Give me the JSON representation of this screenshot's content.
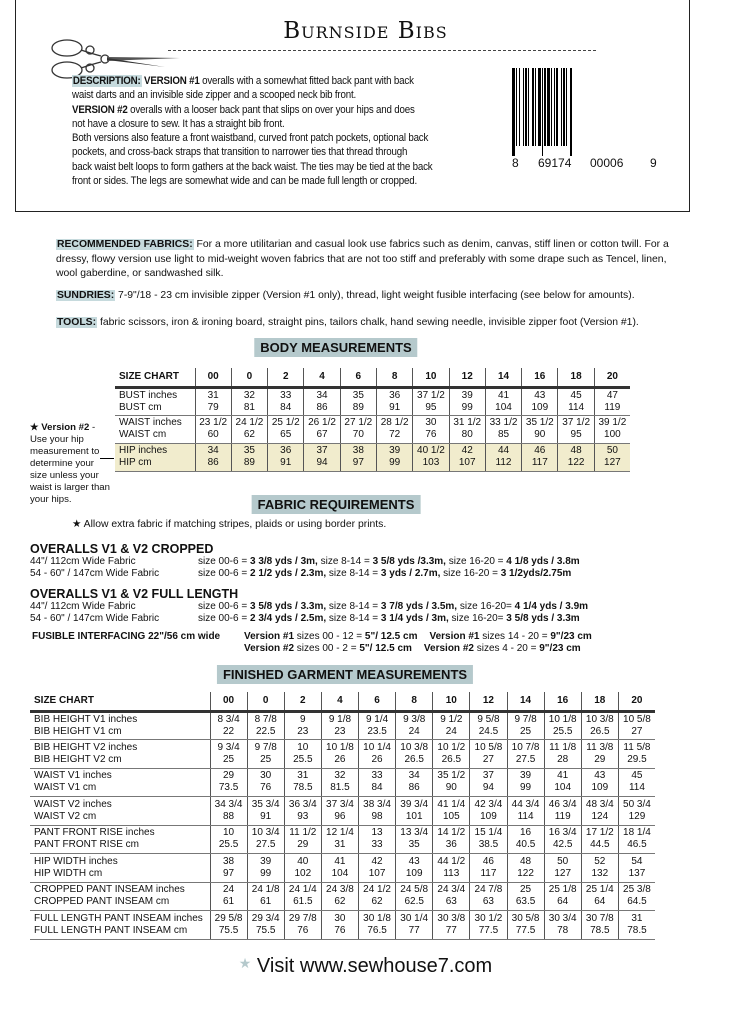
{
  "title": "Burnside Bibs",
  "description": {
    "label": "DESCRIPTION:",
    "lines": [
      {
        "b": "VERSION #1",
        "t": " overalls with a somewhat fitted back pant with back"
      },
      {
        "b": "",
        "t": " waist darts and an invisible side zipper and a scooped neck bib front."
      },
      {
        "b": "VERSION #2",
        "t": " overalls with a looser back pant that slips on over your hips and does"
      },
      {
        "b": "",
        "t": " not have a closure to sew. It has a straight bib front."
      },
      {
        "b": "",
        "t": "Both versions also feature a front waistband, curved front patch pockets, optional back"
      },
      {
        "b": "",
        "t": "pockets, and cross-back straps that transition to narrower ties that thread through"
      },
      {
        "b": "",
        "t": "back waist belt loops to form gathers at the back waist. The ties may be tied at the back"
      },
      {
        "b": "",
        "t": " front or sides. The legs are somewhat wide and can be made full length or cropped."
      }
    ]
  },
  "barcode": {
    "digits": [
      "8",
      "69174",
      "00006",
      "9"
    ]
  },
  "recommended_fabrics": {
    "label": "RECOMMENDED FABRICS:",
    "text": " For a more utilitarian and casual look use fabrics such as denim, canvas, stiff linen or cotton twill. For a dressy, flowy version use light to mid-weight woven fabrics that are not too stiff and preferably with some drape such as Tencel, linen, wool gaberdine, or sandwashed silk."
  },
  "sundries": {
    "label": "SUNDRIES:",
    "text": " 7-9\"/18 - 23 cm invisible zipper (Version #1 only), thread, light weight fusible interfacing (see below for amounts)."
  },
  "tools": {
    "label": "TOOLS:",
    "text": " fabric scissors, iron & ironing board, straight pins, tailors chalk, hand sewing needle, invisible zipper foot (Version #1)."
  },
  "body_measurements": {
    "heading": "BODY MEASUREMENTS",
    "header": [
      "SIZE CHART",
      "00",
      "0",
      "2",
      "4",
      "6",
      "8",
      "10",
      "12",
      "14",
      "16",
      "18",
      "20"
    ],
    "rows": [
      {
        "labels": [
          "BUST inches",
          "BUST cm"
        ],
        "a": [
          "31",
          "32",
          "33",
          "34",
          "35",
          "36",
          "37 1/2",
          "39",
          "41",
          "43",
          "45",
          "47"
        ],
        "b": [
          "79",
          "81",
          "84",
          "86",
          "89",
          "91",
          "95",
          "99",
          "104",
          "109",
          "114",
          "119"
        ]
      },
      {
        "labels": [
          "WAIST inches",
          "WAIST cm"
        ],
        "a": [
          "23 1/2",
          "24 1/2",
          "25 1/2",
          "26 1/2",
          "27 1/2",
          "28 1/2",
          "30",
          "31 1/2",
          "33 1/2",
          "35 1/2",
          "37 1/2",
          "39 1/2"
        ],
        "b": [
          "60",
          "62",
          "65",
          "67",
          "70",
          "72",
          "76",
          "80",
          "85",
          "90",
          "95",
          "100"
        ]
      },
      {
        "labels": [
          "HIP inches",
          "HIP cm"
        ],
        "highlight": true,
        "a": [
          "34",
          "35",
          "36",
          "37",
          "38",
          "39",
          "40 1/2",
          "42",
          "44",
          "46",
          "48",
          "50"
        ],
        "b": [
          "86",
          "89",
          "91",
          "94",
          "97",
          "99",
          "103",
          "107",
          "112",
          "117",
          "122",
          "127"
        ]
      }
    ],
    "note_title": "Version #2",
    "note_text": " - Use your hip measurement to determine your size unless your waist is larger than your hips.",
    "highlight_color": "#f1eccd"
  },
  "fabric_requirements": {
    "heading": "FABRIC REQUIREMENTS",
    "note": "Allow extra fabric if matching stripes, plaids or using border prints.",
    "groups": [
      {
        "title": "OVERALLS V1 & V2 CROPPED",
        "lines": [
          {
            "width": "44\"/ 112cm Wide Fabric",
            "parts": [
              [
                "size 00-6 = ",
                "3 3/8  yds / 3m,"
              ],
              [
                "  size 8-14 = ",
                "3 5/8 yds /3.3m,"
              ],
              [
                "  size 16-20 = ",
                "4 1/8 yds / 3.8m"
              ]
            ]
          },
          {
            "width": "54 - 60\" / 147cm  Wide Fabric",
            "parts": [
              [
                "size 00-6 = ",
                "2 1/2  yds / 2.3m,"
              ],
              [
                "  size 8-14 = ",
                "3 yds / 2.7m,"
              ],
              [
                " size 16-20 = ",
                "3 1/2yds/2.75m"
              ]
            ]
          }
        ]
      },
      {
        "title": "OVERALLS V1 & V2 FULL LENGTH",
        "lines": [
          {
            "width": "44\"/ 112cm Wide Fabric",
            "parts": [
              [
                "size  00-6 = ",
                "3 5/8 yds / 3.3m,"
              ],
              [
                " size  8-14 = ",
                "3 7/8 yds / 3.5m,"
              ],
              [
                " size  16-20= ",
                "4 1/4 yds / 3.9m"
              ]
            ]
          },
          {
            "width": "54 - 60\" / 147cm  Wide Fabric",
            "parts": [
              [
                "size  00-6 = ",
                "2 3/4 yds / 2.5m,"
              ],
              [
                " size  8-14 = ",
                "3 1/4 yds / 3m,"
              ],
              [
                " size  16-20= ",
                "3 5/8 yds / 3.3m"
              ]
            ]
          }
        ]
      }
    ],
    "interfacing": {
      "title": "FUSIBLE INTERFACING 22\"/56 cm wide",
      "lines": [
        [
          [
            "Version #1",
            " sizes 00 - 12 = ",
            "5\"/ 12.5 cm"
          ],
          [
            "Version #1",
            " sizes 14 - 20 = ",
            "9\"/23 cm"
          ]
        ],
        [
          [
            "Version #2",
            " sizes 00 - 2 =  ",
            "5\"/ 12.5 cm"
          ],
          [
            "Version #2",
            " sizes  4 - 20 = ",
            "9\"/23 cm"
          ]
        ]
      ]
    }
  },
  "finished_measurements": {
    "heading": "FINISHED GARMENT MEASUREMENTS",
    "header": [
      "SIZE CHART",
      "00",
      "0",
      "2",
      "4",
      "6",
      "8",
      "10",
      "12",
      "14",
      "16",
      "18",
      "20"
    ],
    "rows": [
      {
        "labels": [
          "BIB HEIGHT V1 inches",
          "BIB HEIGHT V1 cm"
        ],
        "a": [
          "8 3/4",
          "8 7/8",
          "9",
          "9 1/8",
          "9 1/4",
          "9 3/8",
          "9 1/2",
          "9 5/8",
          "9 7/8",
          "10 1/8",
          "10 3/8",
          "10 5/8"
        ],
        "b": [
          "22",
          "22.5",
          "23",
          "23",
          "23.5",
          "24",
          "24",
          "24.5",
          "25",
          "25.5",
          "26.5",
          "27"
        ]
      },
      {
        "labels": [
          "BIB HEIGHT V2 inches",
          "BIB HEIGHT V2 cm"
        ],
        "a": [
          "9 3/4",
          "9 7/8",
          "10",
          "10 1/8",
          "10 1/4",
          "10 3/8",
          "10 1/2",
          "10 5/8",
          "10 7/8",
          "11 1/8",
          "11 3/8",
          "11 5/8"
        ],
        "b": [
          "25",
          "25",
          "25.5",
          "26",
          "26",
          "26.5",
          "26.5",
          "27",
          "27.5",
          "28",
          "29",
          "29.5"
        ]
      },
      {
        "labels": [
          "WAIST V1  inches",
          "WAIST V1  cm"
        ],
        "a": [
          "29",
          "30",
          "31",
          "32",
          "33",
          "34",
          "35 1/2",
          "37",
          "39",
          "41",
          "43",
          "45"
        ],
        "b": [
          "73.5",
          "76",
          "78.5",
          "81.5",
          "84",
          "86",
          "90",
          "94",
          "99",
          "104",
          "109",
          "114"
        ]
      },
      {
        "labels": [
          "WAIST V2  inches",
          "WAIST V2  cm"
        ],
        "a": [
          "34 3/4",
          "35 3/4",
          "36 3/4",
          "37 3/4",
          "38 3/4",
          "39 3/4",
          "41 1/4",
          "42 3/4",
          "44 3/4",
          "46 3/4",
          "48 3/4",
          "50 3/4"
        ],
        "b": [
          "88",
          "91",
          "93",
          "96",
          "98",
          "101",
          "105",
          "109",
          "114",
          "119",
          "124",
          "129"
        ]
      },
      {
        "labels": [
          "PANT FRONT RISE inches",
          "PANT FRONT RISE cm"
        ],
        "a": [
          "10",
          "10 3/4",
          "11 1/2",
          "12 1/4",
          "13",
          "13 3/4",
          "14 1/2",
          "15 1/4",
          "16",
          "16 3/4",
          "17 1/2",
          "18 1/4"
        ],
        "b": [
          "25.5",
          "27.5",
          "29",
          "31",
          "33",
          "35",
          "36",
          "38.5",
          "40.5",
          "42.5",
          "44.5",
          "46.5"
        ]
      },
      {
        "labels": [
          "HIP WIDTH inches",
          "HIP WIDTH cm"
        ],
        "a": [
          "38",
          "39",
          "40",
          "41",
          "42",
          "43",
          "44 1/2",
          "46",
          "48",
          "50",
          "52",
          "54"
        ],
        "b": [
          "97",
          "99",
          "102",
          "104",
          "107",
          "109",
          "113",
          "117",
          "122",
          "127",
          "132",
          "137"
        ]
      },
      {
        "labels": [
          "CROPPED PANT INSEAM inches",
          "CROPPED PANT INSEAM cm"
        ],
        "a": [
          "24",
          "24 1/8",
          "24 1/4",
          "24 3/8",
          "24 1/2",
          "24 5/8",
          "24 3/4",
          "24 7/8",
          "25",
          "25 1/8",
          "25 1/4",
          "25 3/8"
        ],
        "b": [
          "61",
          "61",
          "61.5",
          "62",
          "62",
          "62.5",
          "63",
          "63",
          "63.5",
          "64",
          "64",
          "64.5"
        ]
      },
      {
        "labels": [
          "FULL LENGTH PANT INSEAM inches",
          "FULL LENGTH PANT INSEAM cm"
        ],
        "a": [
          "29 5/8",
          "29 3/4",
          "29 7/8",
          "30",
          "30 1/8",
          "30 1/4",
          "30 3/8",
          "30 1/2",
          "30 5/8",
          "30 3/4",
          "30 7/8",
          "31"
        ],
        "b": [
          "75.5",
          "75.5",
          "76",
          "76",
          "76.5",
          "77",
          "77",
          "77.5",
          "77.5",
          "78",
          "78.5",
          "78.5"
        ]
      }
    ]
  },
  "footer": {
    "text": "Visit www.sewhouse7.com"
  },
  "colors": {
    "section_heading_bg": "#b5c9cc",
    "label_bg": "#c6dadd"
  }
}
